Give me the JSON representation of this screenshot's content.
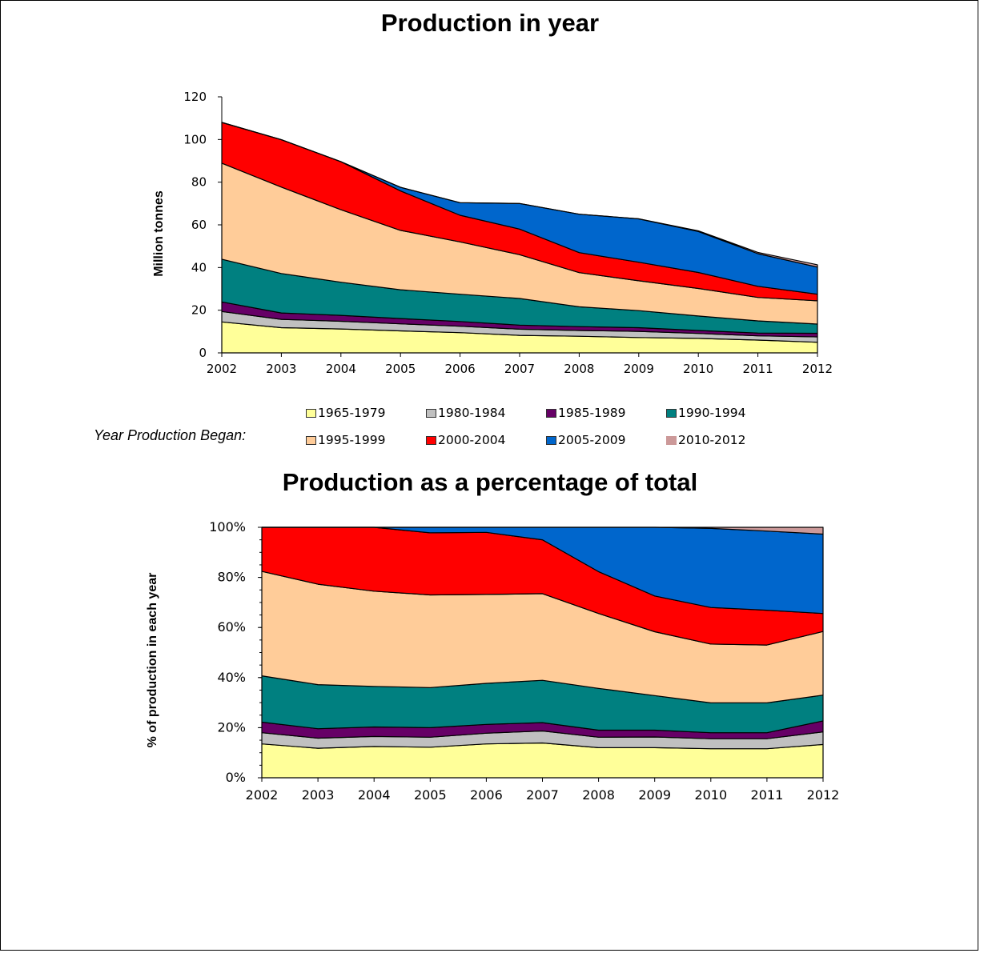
{
  "chart_data": [
    {
      "type": "area",
      "stacked": true,
      "title": "Production in year",
      "ylabel": "Million tonnes",
      "xlabel": "",
      "ylim": [
        0,
        120
      ],
      "yticks": [
        "0",
        "20",
        "40",
        "60",
        "80",
        "100",
        "120"
      ],
      "ytick_values": [
        0,
        20,
        40,
        60,
        80,
        100,
        120
      ],
      "categories": [
        "2002",
        "2003",
        "2004",
        "2005",
        "2006",
        "2007",
        "2008",
        "2009",
        "2010",
        "2011",
        "2012"
      ],
      "series": [
        {
          "name": "1965-1979",
          "color": "#ffff99",
          "values": [
            14.5,
            11.8,
            11.2,
            10.3,
            9.5,
            8.2,
            7.8,
            7.2,
            6.8,
            6.0,
            5.0
          ]
        },
        {
          "name": "1980-1984",
          "color": "#c0c0c0",
          "values": [
            4.9,
            3.9,
            3.6,
            3.3,
            3.0,
            2.9,
            2.7,
            2.9,
            2.3,
            2.0,
            2.5
          ]
        },
        {
          "name": "1985-1989",
          "color": "#660066",
          "values": [
            4.5,
            3.0,
            2.8,
            2.5,
            2.2,
            1.9,
            1.8,
            1.7,
            1.4,
            1.3,
            1.7
          ]
        },
        {
          "name": "1990-1994",
          "color": "#008080",
          "values": [
            20.0,
            18.5,
            15.5,
            13.5,
            12.8,
            12.5,
            9.3,
            8.0,
            6.8,
            5.7,
            4.3
          ]
        },
        {
          "name": "1995-1999",
          "color": "#ffcc99",
          "values": [
            45.0,
            40.5,
            34.0,
            27.8,
            24.5,
            20.5,
            16.0,
            14.0,
            12.9,
            11.0,
            10.9
          ]
        },
        {
          "name": "2000-2004",
          "color": "#ff0000",
          "values": [
            19.1,
            22.2,
            22.5,
            18.5,
            12.5,
            12.0,
            9.4,
            8.7,
            7.5,
            5.2,
            3.1
          ]
        },
        {
          "name": "2005-2009",
          "color": "#0066cc",
          "values": [
            0,
            0,
            0,
            1.7,
            5.9,
            12.0,
            18.0,
            20.3,
            19.2,
            15.3,
            12.7
          ]
        },
        {
          "name": "2010-2012",
          "color": "#cc9999",
          "values": [
            0,
            0,
            0,
            0,
            0,
            0,
            0,
            0,
            0.3,
            0.6,
            1.1
          ]
        }
      ]
    },
    {
      "type": "area",
      "stacked": true,
      "percent": true,
      "title": "Production as a percentage of total",
      "ylabel": "% of production in each year",
      "xlabel": "",
      "ylim": [
        0,
        100
      ],
      "yticks": [
        "0%",
        "20%",
        "40%",
        "60%",
        "80%",
        "100%"
      ],
      "ytick_values": [
        0,
        20,
        40,
        60,
        80,
        100
      ],
      "categories": [
        "2002",
        "2003",
        "2004",
        "2005",
        "2006",
        "2007",
        "2008",
        "2009",
        "2010",
        "2011",
        "2012"
      ],
      "series": [
        {
          "name": "1965-1979",
          "color": "#ffff99",
          "values": [
            13.5,
            11.8,
            12.5,
            12.2,
            13.5,
            13.9,
            12.0,
            12.0,
            11.6,
            11.6,
            13.3
          ]
        },
        {
          "name": "1980-1984",
          "color": "#c0c0c0",
          "values": [
            4.5,
            4.0,
            4.0,
            4.0,
            4.3,
            4.8,
            4.2,
            4.3,
            4.0,
            4.0,
            5.0
          ]
        },
        {
          "name": "1985-1989",
          "color": "#660066",
          "values": [
            4.2,
            3.8,
            3.8,
            3.8,
            3.5,
            3.3,
            2.8,
            2.7,
            2.4,
            2.4,
            4.4
          ]
        },
        {
          "name": "1990-1994",
          "color": "#008080",
          "values": [
            18.5,
            17.6,
            16.2,
            16.0,
            16.4,
            16.9,
            16.7,
            13.8,
            11.9,
            11.9,
            10.3
          ]
        },
        {
          "name": "1995-1999",
          "color": "#ffcc99",
          "values": [
            41.7,
            40.1,
            38.0,
            37.0,
            35.5,
            34.6,
            29.9,
            25.5,
            23.5,
            23.1,
            25.4
          ]
        },
        {
          "name": "2000-2004",
          "color": "#ff0000",
          "values": [
            17.6,
            22.7,
            25.5,
            24.8,
            24.8,
            21.5,
            16.7,
            14.3,
            14.6,
            13.9,
            7.2
          ]
        },
        {
          "name": "2005-2009",
          "color": "#0066cc",
          "values": [
            0,
            0,
            0,
            2.2,
            2.0,
            5.0,
            17.7,
            27.4,
            31.6,
            31.6,
            31.7
          ]
        },
        {
          "name": "2010-2012",
          "color": "#cc9999",
          "values": [
            0,
            0,
            0,
            0,
            0,
            0,
            0,
            0,
            0.4,
            1.5,
            2.7
          ]
        }
      ]
    }
  ],
  "legend": {
    "caption": "Year Production Began:",
    "placement": "between charts",
    "items": [
      {
        "label": "1965-1979",
        "color": "#ffff99"
      },
      {
        "label": "1980-1984",
        "color": "#c0c0c0"
      },
      {
        "label": "1985-1989",
        "color": "#660066"
      },
      {
        "label": "1990-1994",
        "color": "#008080"
      },
      {
        "label": "1995-1999",
        "color": "#ffcc99"
      },
      {
        "label": "2000-2004",
        "color": "#ff0000"
      },
      {
        "label": "2005-2009",
        "color": "#0066cc"
      },
      {
        "label": "2010-2012",
        "color": "#cc9999"
      }
    ]
  }
}
